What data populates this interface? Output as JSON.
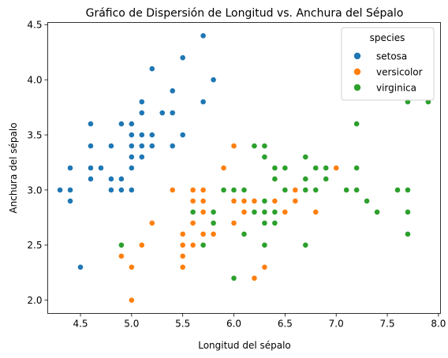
{
  "chart_data": {
    "type": "scatter",
    "title": "Gráfico de Dispersión de Longitud vs. Anchura del Sépalo",
    "xlabel": "Longitud del sépalo",
    "ylabel": "Anchura del sépalo",
    "xlim": [
      4.18,
      8.02
    ],
    "ylim": [
      1.88,
      4.52
    ],
    "xticks": [
      4.5,
      5.0,
      5.5,
      6.0,
      6.5,
      7.0,
      7.5,
      8.0
    ],
    "xtick_labels": [
      "4.5",
      "5.0",
      "5.5",
      "6.0",
      "6.5",
      "7.0",
      "7.5",
      "8.0"
    ],
    "yticks": [
      2.0,
      2.5,
      3.0,
      3.5,
      4.0,
      4.5
    ],
    "ytick_labels": [
      "2.0",
      "2.5",
      "3.0",
      "3.5",
      "4.0",
      "4.5"
    ],
    "grid": false,
    "legend": {
      "title": "species",
      "position": "top-right"
    },
    "series": [
      {
        "name": "setosa",
        "color": "#1f77b4",
        "points": [
          [
            5.1,
            3.5
          ],
          [
            4.9,
            3.0
          ],
          [
            4.7,
            3.2
          ],
          [
            4.6,
            3.1
          ],
          [
            5.0,
            3.6
          ],
          [
            5.4,
            3.9
          ],
          [
            4.6,
            3.4
          ],
          [
            5.0,
            3.4
          ],
          [
            4.4,
            2.9
          ],
          [
            4.9,
            3.1
          ],
          [
            5.4,
            3.7
          ],
          [
            4.8,
            3.4
          ],
          [
            4.8,
            3.0
          ],
          [
            4.3,
            3.0
          ],
          [
            5.8,
            4.0
          ],
          [
            5.7,
            4.4
          ],
          [
            5.4,
            3.9
          ],
          [
            5.1,
            3.5
          ],
          [
            5.7,
            3.8
          ],
          [
            5.1,
            3.8
          ],
          [
            5.4,
            3.4
          ],
          [
            5.1,
            3.7
          ],
          [
            4.6,
            3.6
          ],
          [
            5.1,
            3.3
          ],
          [
            4.8,
            3.4
          ],
          [
            5.0,
            3.0
          ],
          [
            5.0,
            3.4
          ],
          [
            5.2,
            3.5
          ],
          [
            5.2,
            3.4
          ],
          [
            4.7,
            3.2
          ],
          [
            4.8,
            3.1
          ],
          [
            5.4,
            3.4
          ],
          [
            5.2,
            4.1
          ],
          [
            5.5,
            4.2
          ],
          [
            4.9,
            3.1
          ],
          [
            5.0,
            3.2
          ],
          [
            5.5,
            3.5
          ],
          [
            4.9,
            3.6
          ],
          [
            4.4,
            3.0
          ],
          [
            5.1,
            3.4
          ],
          [
            5.0,
            3.5
          ],
          [
            4.5,
            2.3
          ],
          [
            4.4,
            3.2
          ],
          [
            5.0,
            3.5
          ],
          [
            5.1,
            3.8
          ],
          [
            4.8,
            3.0
          ],
          [
            5.1,
            3.8
          ],
          [
            4.6,
            3.2
          ],
          [
            5.3,
            3.7
          ],
          [
            5.0,
            3.3
          ]
        ]
      },
      {
        "name": "versicolor",
        "color": "#ff7f0e",
        "points": [
          [
            7.0,
            3.2
          ],
          [
            6.4,
            3.2
          ],
          [
            6.9,
            3.1
          ],
          [
            5.5,
            2.3
          ],
          [
            6.5,
            2.8
          ],
          [
            5.7,
            2.8
          ],
          [
            6.3,
            3.3
          ],
          [
            4.9,
            2.4
          ],
          [
            6.6,
            2.9
          ],
          [
            5.2,
            2.7
          ],
          [
            5.0,
            2.0
          ],
          [
            5.9,
            3.0
          ],
          [
            6.0,
            2.2
          ],
          [
            6.1,
            2.9
          ],
          [
            5.6,
            2.9
          ],
          [
            6.7,
            3.1
          ],
          [
            5.6,
            3.0
          ],
          [
            5.8,
            2.7
          ],
          [
            6.2,
            2.2
          ],
          [
            5.6,
            2.5
          ],
          [
            5.9,
            3.2
          ],
          [
            6.1,
            2.8
          ],
          [
            6.3,
            2.5
          ],
          [
            6.1,
            2.8
          ],
          [
            6.4,
            2.9
          ],
          [
            6.6,
            3.0
          ],
          [
            6.8,
            2.8
          ],
          [
            6.7,
            3.0
          ],
          [
            6.0,
            2.9
          ],
          [
            5.7,
            2.6
          ],
          [
            5.5,
            2.4
          ],
          [
            5.5,
            2.4
          ],
          [
            5.8,
            2.7
          ],
          [
            6.0,
            2.7
          ],
          [
            5.4,
            3.0
          ],
          [
            6.0,
            3.4
          ],
          [
            6.7,
            3.1
          ],
          [
            6.3,
            2.3
          ],
          [
            5.6,
            3.0
          ],
          [
            5.5,
            2.5
          ],
          [
            5.5,
            2.6
          ],
          [
            6.1,
            3.0
          ],
          [
            5.8,
            2.6
          ],
          [
            5.0,
            2.3
          ],
          [
            5.6,
            2.7
          ],
          [
            5.7,
            3.0
          ],
          [
            5.7,
            2.9
          ],
          [
            6.2,
            2.9
          ],
          [
            5.1,
            2.5
          ],
          [
            5.7,
            2.8
          ]
        ]
      },
      {
        "name": "virginica",
        "color": "#2ca02c",
        "points": [
          [
            6.3,
            3.3
          ],
          [
            5.8,
            2.7
          ],
          [
            7.1,
            3.0
          ],
          [
            6.3,
            2.9
          ],
          [
            6.5,
            3.0
          ],
          [
            7.6,
            3.0
          ],
          [
            4.9,
            2.5
          ],
          [
            7.3,
            2.9
          ],
          [
            6.7,
            2.5
          ],
          [
            7.2,
            3.6
          ],
          [
            6.5,
            3.2
          ],
          [
            6.4,
            2.7
          ],
          [
            6.8,
            3.0
          ],
          [
            5.7,
            2.5
          ],
          [
            5.8,
            2.8
          ],
          [
            6.4,
            3.2
          ],
          [
            6.5,
            3.0
          ],
          [
            7.7,
            3.8
          ],
          [
            7.7,
            2.6
          ],
          [
            6.0,
            2.2
          ],
          [
            6.9,
            3.2
          ],
          [
            5.6,
            2.8
          ],
          [
            7.7,
            2.8
          ],
          [
            6.3,
            2.7
          ],
          [
            6.7,
            3.3
          ],
          [
            7.2,
            3.2
          ],
          [
            6.2,
            2.8
          ],
          [
            6.1,
            3.0
          ],
          [
            6.4,
            2.8
          ],
          [
            7.2,
            3.0
          ],
          [
            7.4,
            2.8
          ],
          [
            7.9,
            3.8
          ],
          [
            6.4,
            2.8
          ],
          [
            6.3,
            2.8
          ],
          [
            6.1,
            2.6
          ],
          [
            7.7,
            3.0
          ],
          [
            6.3,
            3.4
          ],
          [
            6.4,
            3.1
          ],
          [
            6.0,
            3.0
          ],
          [
            6.9,
            3.1
          ],
          [
            6.7,
            3.1
          ],
          [
            6.9,
            3.1
          ],
          [
            5.8,
            2.7
          ],
          [
            6.8,
            3.2
          ],
          [
            6.7,
            3.3
          ],
          [
            6.7,
            3.0
          ],
          [
            6.3,
            2.5
          ],
          [
            6.5,
            3.0
          ],
          [
            6.2,
            3.4
          ],
          [
            5.9,
            3.0
          ]
        ]
      }
    ]
  }
}
